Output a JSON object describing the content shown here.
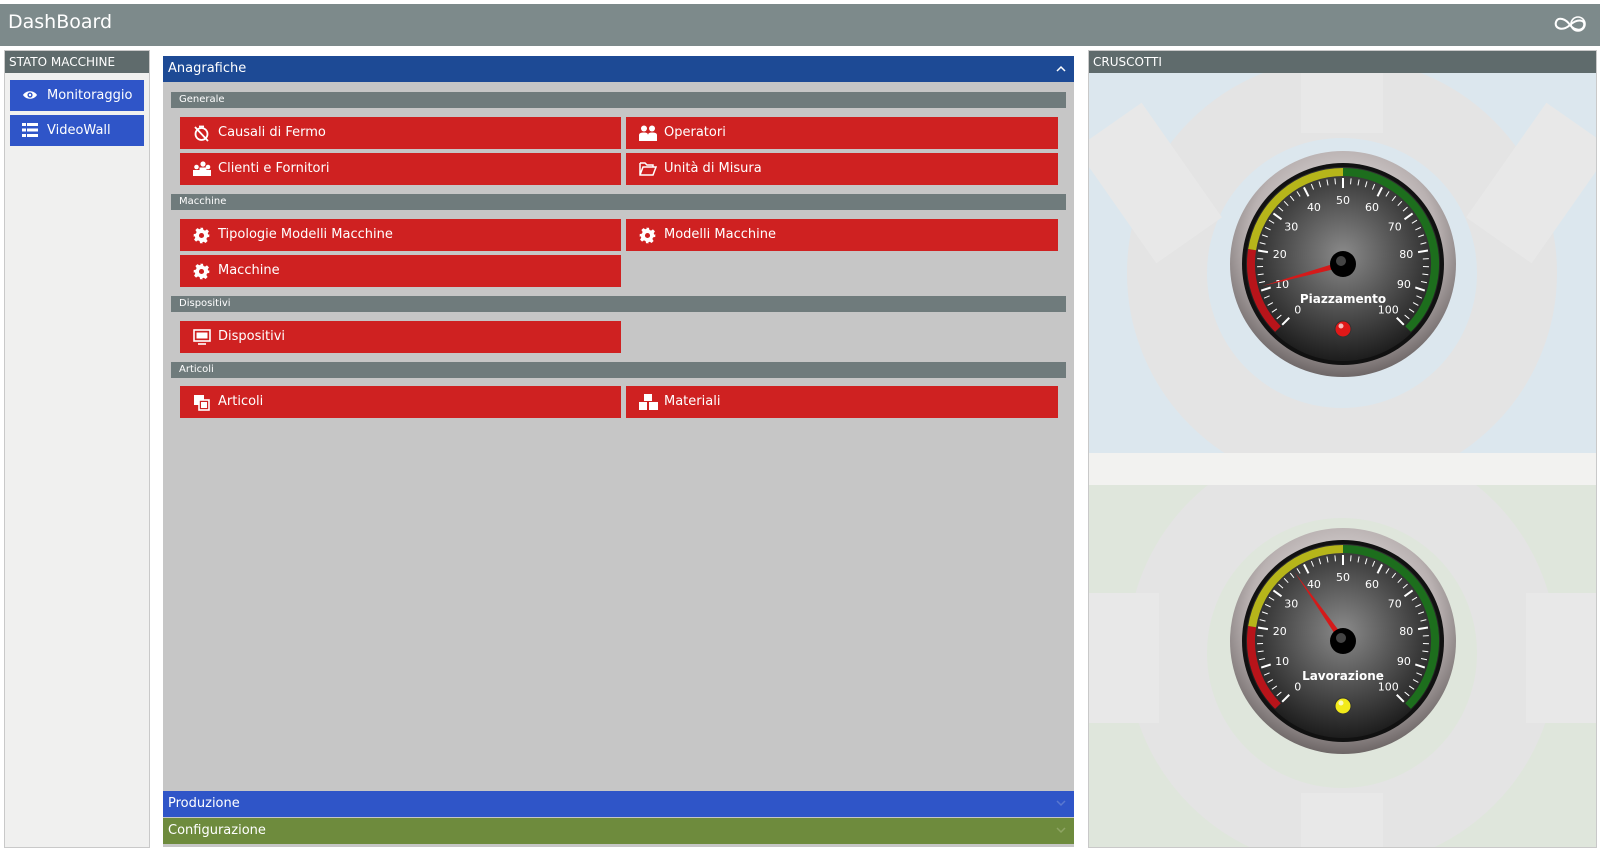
{
  "app": {
    "title": "DashBoard",
    "logo_icon": "infinity-icon"
  },
  "left_panel": {
    "header": "STATO MACCHINE",
    "items": [
      {
        "label": "Monitoraggio",
        "icon": "eye-icon"
      },
      {
        "label": "VideoWall",
        "icon": "list-icon"
      }
    ]
  },
  "center": {
    "accordions": [
      {
        "label": "Anagrafiche",
        "color": "#1d4a95",
        "expanded": true
      },
      {
        "label": "Produzione",
        "color": "#2f55c8",
        "expanded": false
      },
      {
        "label": "Configurazione",
        "color": "#6e8b3d",
        "expanded": false
      }
    ],
    "sections": [
      {
        "label": "Generale",
        "buttons": [
          {
            "label": "Causali di Fermo",
            "icon": "stop-timer-icon"
          },
          {
            "label": "Operatori",
            "icon": "users-icon"
          },
          {
            "label": "Clienti e Fornitori",
            "icon": "group-icon"
          },
          {
            "label": "Unità di Misura",
            "icon": "folder-open-icon"
          }
        ]
      },
      {
        "label": "Macchine",
        "buttons": [
          {
            "label": "Tipologie Modelli Macchine",
            "icon": "gear-icon"
          },
          {
            "label": "Modelli Macchine",
            "icon": "gear-icon"
          },
          {
            "label": "Macchine",
            "icon": "gear-icon"
          }
        ]
      },
      {
        "label": "Dispositivi",
        "buttons": [
          {
            "label": "Dispositivi",
            "icon": "monitor-icon"
          }
        ]
      },
      {
        "label": "Articoli",
        "buttons": [
          {
            "label": "Articoli",
            "icon": "copy-icon"
          },
          {
            "label": "Materiali",
            "icon": "cubes-icon"
          }
        ]
      }
    ]
  },
  "right_panel": {
    "header": "CRUSCOTTI",
    "gauges": [
      {
        "label": "Piazzamento",
        "value": 11,
        "min": 0,
        "max": 100,
        "lamp_color": "#e01818"
      },
      {
        "label": "Lavorazione",
        "value": 37,
        "min": 0,
        "max": 100,
        "lamp_color": "#f2ea1a"
      }
    ],
    "tick_labels": [
      "0",
      "10",
      "20",
      "30",
      "40",
      "50",
      "60",
      "70",
      "80",
      "90",
      "100"
    ],
    "zone_colors": {
      "low": "#b8141a",
      "mid": "#b6b51a",
      "high": "#1d6e1d"
    }
  }
}
